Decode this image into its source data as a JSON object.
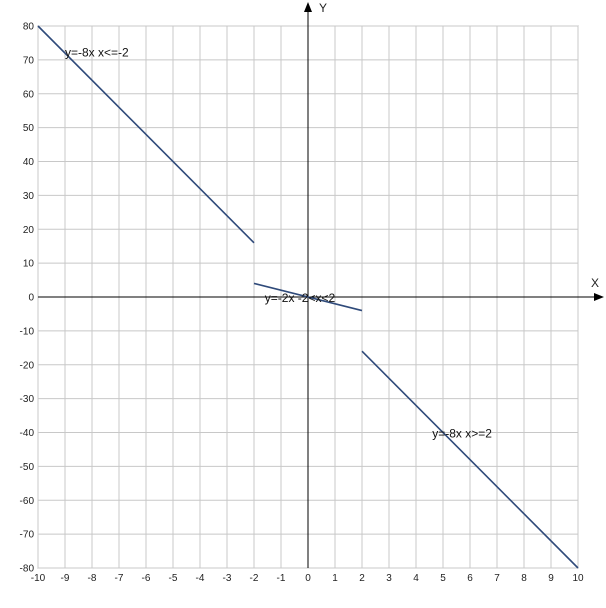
{
  "chart_data": {
    "type": "line",
    "title": "",
    "xlabel": "X",
    "ylabel": "Y",
    "xlim": [
      -10,
      10
    ],
    "ylim": [
      -80,
      80
    ],
    "grid": true,
    "x_ticks": [
      "-10",
      "-9",
      "-8",
      "-7",
      "-6",
      "-5",
      "-4",
      "-3",
      "-2",
      "-1",
      "0",
      "1",
      "2",
      "3",
      "4",
      "5",
      "6",
      "7",
      "8",
      "9",
      "10"
    ],
    "y_ticks": [
      "80",
      "70",
      "60",
      "50",
      "40",
      "30",
      "20",
      "10",
      "0",
      "-10",
      "-20",
      "-30",
      "-40",
      "-50",
      "-60",
      "-70",
      "-80"
    ],
    "series_color": "#2f4a7a",
    "series": [
      {
        "points": [
          [
            -10,
            80
          ],
          [
            -2,
            16
          ]
        ]
      },
      {
        "points": [
          [
            -2,
            4
          ],
          [
            2,
            -4
          ]
        ]
      },
      {
        "points": [
          [
            2,
            -16
          ],
          [
            10,
            -80
          ]
        ]
      }
    ],
    "annotations": [
      {
        "text": "y=-8x  x<=-2",
        "x": -9.0,
        "y": 71
      },
      {
        "text": "y=-2x  -2<x<2",
        "x": -1.6,
        "y": -1.5
      },
      {
        "text": "y=-8x  x>=2",
        "x": 4.6,
        "y": -41.5
      }
    ]
  }
}
